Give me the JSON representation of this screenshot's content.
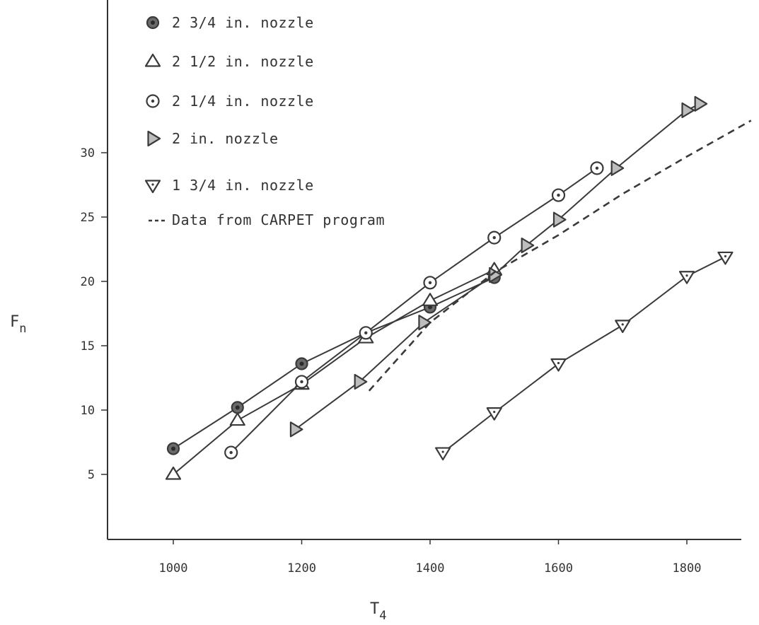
{
  "chart_data": {
    "type": "line",
    "xlabel": "T",
    "xlabel_sub": "4",
    "ylabel": "F",
    "ylabel_sub": "n",
    "xlim": [
      940,
      1900
    ],
    "ylim": [
      0,
      35
    ],
    "x_ticks": [
      1000,
      1200,
      1400,
      1600,
      1800
    ],
    "x_tick_labels": [
      "1000",
      "1200",
      "1400",
      "1600",
      "1800"
    ],
    "y_ticks": [
      5,
      10,
      15,
      20,
      25,
      30
    ],
    "y_tick_labels": [
      "5",
      "10",
      "15",
      "20",
      "25",
      "30"
    ],
    "grid": false,
    "legend_position": "top-left",
    "series": [
      {
        "name": "2 3/4 in. nozzle",
        "marker": "filled-circle",
        "x": [
          1000,
          1100,
          1200,
          1300,
          1400,
          1500
        ],
        "y": [
          7.0,
          10.2,
          13.6,
          16.0,
          18.0,
          20.3
        ]
      },
      {
        "name": "2 1/2 in. nozzle",
        "marker": "triangle-up",
        "x": [
          1000,
          1100,
          1200,
          1300,
          1400,
          1500
        ],
        "y": [
          5.0,
          9.2,
          12.0,
          15.6,
          18.5,
          20.9
        ]
      },
      {
        "name": "2 1/4 in. nozzle",
        "marker": "circle-dot",
        "x": [
          1090,
          1200,
          1300,
          1400,
          1500,
          1600,
          1660
        ],
        "y": [
          6.7,
          12.2,
          16.0,
          19.9,
          23.4,
          26.7,
          28.8
        ]
      },
      {
        "name": "2 in. nozzle",
        "marker": "triangle-right",
        "x": [
          1190,
          1290,
          1390,
          1500,
          1550,
          1600,
          1690,
          1800,
          1820
        ],
        "y": [
          8.5,
          12.2,
          16.8,
          20.5,
          22.8,
          24.8,
          28.8,
          33.3,
          33.8
        ]
      },
      {
        "name": "1 3/4 in. nozzle",
        "marker": "triangle-down",
        "x": [
          1420,
          1500,
          1600,
          1700,
          1800,
          1860
        ],
        "y": [
          6.7,
          9.8,
          13.6,
          16.6,
          20.4,
          21.9
        ]
      },
      {
        "name": "Data from CARPET program",
        "marker": "none",
        "dashed": true,
        "x": [
          1305,
          1400,
          1500,
          1600,
          1700,
          1800,
          1900
        ],
        "y": [
          11.5,
          16.8,
          20.7,
          23.6,
          26.8,
          29.7,
          32.5
        ]
      }
    ]
  }
}
